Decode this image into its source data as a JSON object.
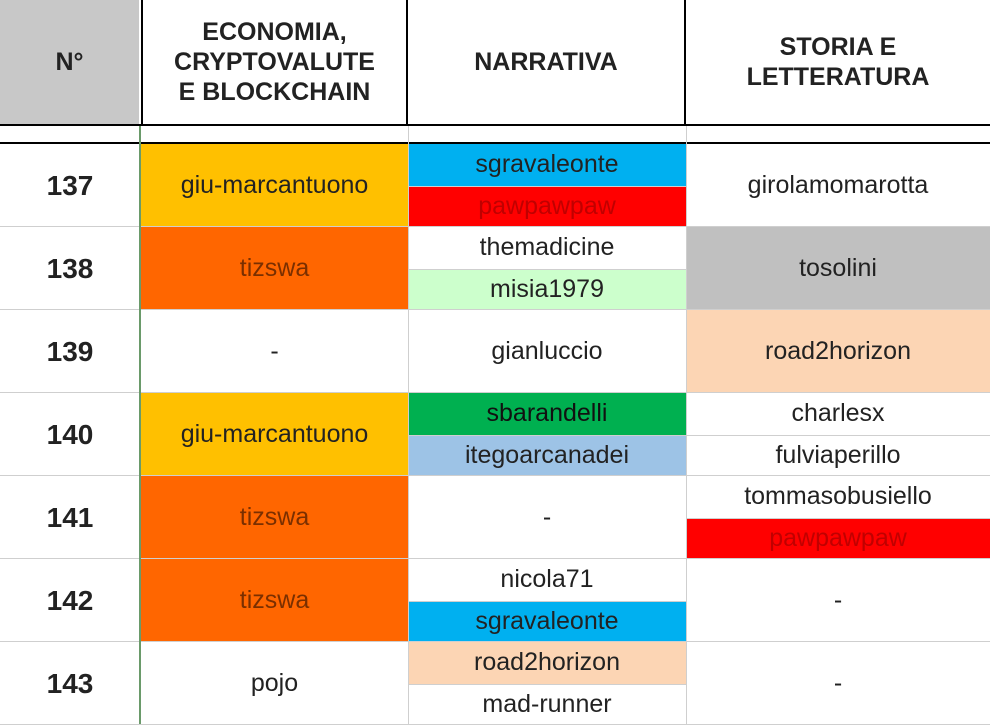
{
  "header": {
    "num": "N°",
    "col1": [
      "ECONOMIA,",
      "CRYPTOVALUTE",
      "E BLOCKCHAIN"
    ],
    "col2": "NARRATIVA",
    "col3": [
      "STORIA E",
      "LETTERATURA"
    ]
  },
  "rows": [
    {
      "n": "137",
      "econ": {
        "text": "giu-marcantuono",
        "bg": "#ffc000",
        "color": "#222222"
      },
      "narr": [
        {
          "text": "sgravaleonte",
          "bg": "#00b0f0",
          "color": "#222222"
        },
        {
          "text": "pawpawpaw",
          "bg": "#ff0000",
          "color": "#c00000"
        }
      ],
      "stor": [
        {
          "text": "girolamomarotta",
          "bg": "#ffffff",
          "color": "#222222"
        }
      ]
    },
    {
      "n": "138",
      "econ": {
        "text": "tizswa",
        "bg": "#ff6600",
        "color": "#7a2f00"
      },
      "narr": [
        {
          "text": "themadicine",
          "bg": "#ffffff",
          "color": "#222222"
        },
        {
          "text": "misia1979",
          "bg": "#ccffcc",
          "color": "#222222"
        }
      ],
      "stor": [
        {
          "text": "tosolini",
          "bg": "#c0c0c0",
          "color": "#222222"
        }
      ]
    },
    {
      "n": "139",
      "econ": {
        "text": "-",
        "bg": "#ffffff",
        "color": "#222222"
      },
      "narr": [
        {
          "text": "gianluccio",
          "bg": "#ffffff",
          "color": "#222222"
        }
      ],
      "stor": [
        {
          "text": "road2horizon",
          "bg": "#fcd5b4",
          "color": "#222222"
        }
      ]
    },
    {
      "n": "140",
      "econ": {
        "text": "giu-marcantuono",
        "bg": "#ffc000",
        "color": "#222222"
      },
      "narr": [
        {
          "text": "sbarandelli",
          "bg": "#00b050",
          "color": "#111111"
        },
        {
          "text": "itegoarcanadei",
          "bg": "#9dc3e6",
          "color": "#222222"
        }
      ],
      "stor": [
        {
          "text": "charlesx",
          "bg": "#ffffff",
          "color": "#222222"
        },
        {
          "text": "fulviaperillo",
          "bg": "#ffffff",
          "color": "#222222"
        }
      ]
    },
    {
      "n": "141",
      "econ": {
        "text": "tizswa",
        "bg": "#ff6600",
        "color": "#7a2f00"
      },
      "narr": [
        {
          "text": "-",
          "bg": "#ffffff",
          "color": "#222222"
        }
      ],
      "stor": [
        {
          "text": "tommasobusiello",
          "bg": "#ffffff",
          "color": "#222222"
        },
        {
          "text": "pawpawpaw",
          "bg": "#ff0000",
          "color": "#c00000"
        }
      ]
    },
    {
      "n": "142",
      "econ": {
        "text": "tizswa",
        "bg": "#ff6600",
        "color": "#7a2f00"
      },
      "narr": [
        {
          "text": "nicola71",
          "bg": "#ffffff",
          "color": "#222222"
        },
        {
          "text": "sgravaleonte",
          "bg": "#00b0f0",
          "color": "#222222"
        }
      ],
      "stor": [
        {
          "text": "-",
          "bg": "#ffffff",
          "color": "#222222"
        }
      ]
    },
    {
      "n": "143",
      "econ": {
        "text": "pojo",
        "bg": "#ffffff",
        "color": "#222222"
      },
      "narr": [
        {
          "text": "road2horizon",
          "bg": "#fcd5b4",
          "color": "#222222"
        },
        {
          "text": "mad-runner",
          "bg": "#ffffff",
          "color": "#222222"
        }
      ],
      "stor": [
        {
          "text": "-",
          "bg": "#ffffff",
          "color": "#222222"
        }
      ]
    }
  ],
  "colors": {
    "num_header_bg": "#c8c8c8",
    "header_border": "#000000",
    "grid": "#cfcfcf",
    "accent_line": "#6a9a6a"
  }
}
